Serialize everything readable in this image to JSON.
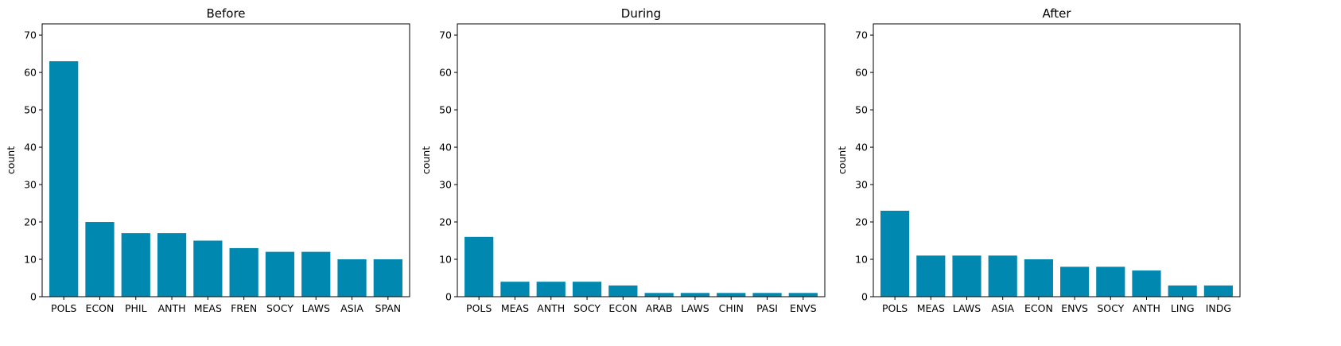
{
  "colors": {
    "bar": "#0088b0",
    "axis": "#000000",
    "background": "#ffffff"
  },
  "chart_data": [
    {
      "type": "bar",
      "title": "Before",
      "ylabel": "count",
      "xlabel": "",
      "ylim": [
        0,
        73
      ],
      "yticks": [
        0,
        10,
        20,
        30,
        40,
        50,
        60,
        70
      ],
      "categories": [
        "POLS",
        "ECON",
        "PHIL",
        "ANTH",
        "MEAS",
        "FREN",
        "SOCY",
        "LAWS",
        "ASIA",
        "SPAN"
      ],
      "values": [
        63,
        20,
        17,
        17,
        15,
        13,
        12,
        12,
        10,
        10
      ],
      "grid": false
    },
    {
      "type": "bar",
      "title": "During",
      "ylabel": "count",
      "xlabel": "",
      "ylim": [
        0,
        73
      ],
      "yticks": [
        0,
        10,
        20,
        30,
        40,
        50,
        60,
        70
      ],
      "categories": [
        "POLS",
        "MEAS",
        "ANTH",
        "SOCY",
        "ECON",
        "ARAB",
        "LAWS",
        "CHIN",
        "PASI",
        "ENVS"
      ],
      "values": [
        16,
        4,
        4,
        4,
        3,
        1,
        1,
        1,
        1,
        1
      ],
      "grid": false
    },
    {
      "type": "bar",
      "title": "After",
      "ylabel": "count",
      "xlabel": "",
      "ylim": [
        0,
        73
      ],
      "yticks": [
        0,
        10,
        20,
        30,
        40,
        50,
        60,
        70
      ],
      "categories": [
        "POLS",
        "MEAS",
        "LAWS",
        "ASIA",
        "ECON",
        "ENVS",
        "SOCY",
        "ANTH",
        "LING",
        "INDG"
      ],
      "values": [
        23,
        11,
        11,
        11,
        10,
        8,
        8,
        7,
        3,
        3
      ],
      "grid": false
    }
  ]
}
